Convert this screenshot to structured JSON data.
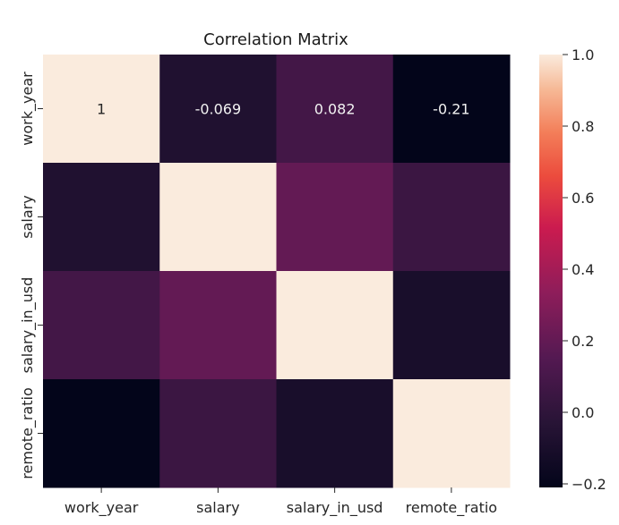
{
  "chart_data": {
    "type": "heatmap",
    "title": "Correlation Matrix",
    "xlabel": "",
    "ylabel": "",
    "x_categories": [
      "work_year",
      "salary",
      "salary_in_usd",
      "remote_ratio"
    ],
    "y_categories": [
      "work_year",
      "salary",
      "salary_in_usd",
      "remote_ratio"
    ],
    "values": [
      [
        1.0,
        -0.069,
        0.082,
        -0.21
      ],
      [
        -0.069,
        1.0,
        0.2,
        0.05
      ],
      [
        0.082,
        0.2,
        1.0,
        -0.1
      ],
      [
        -0.21,
        0.05,
        -0.1,
        1.0
      ]
    ],
    "annotations": [
      [
        "1",
        "-0.069",
        "0.082",
        "-0.21"
      ],
      [
        "",
        "",
        "",
        ""
      ],
      [
        "",
        "",
        "",
        ""
      ],
      [
        "",
        "",
        "",
        ""
      ]
    ],
    "colorbar": {
      "vmin": -0.21,
      "vmax": 1.0,
      "ticks": [
        -0.2,
        0.0,
        0.2,
        0.4,
        0.6,
        0.8,
        1.0
      ],
      "tick_labels": [
        "−0.2",
        "0.0",
        "0.2",
        "0.4",
        "0.6",
        "0.8",
        "1.0"
      ],
      "colormap": "rocket"
    }
  }
}
